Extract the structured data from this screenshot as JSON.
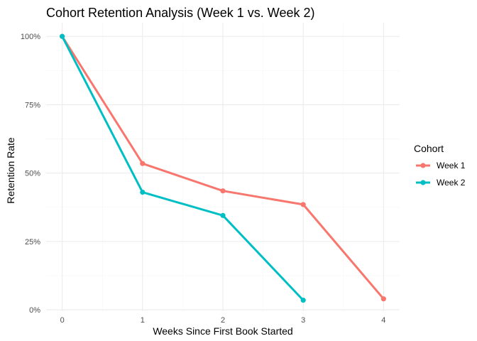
{
  "chart_data": {
    "type": "line",
    "title": "Cohort Retention Analysis (Week 1 vs. Week 2)",
    "xlabel": "Weeks Since First Book Started",
    "ylabel": "Retention Rate",
    "xlim": [
      -0.2,
      4.2
    ],
    "ylim": [
      -0.005,
      1.05
    ],
    "x_ticks": [
      0,
      1,
      2,
      3,
      4
    ],
    "x_tick_labels": [
      "0",
      "1",
      "2",
      "3",
      "4"
    ],
    "y_ticks": [
      0,
      0.25,
      0.5,
      0.75,
      1.0
    ],
    "y_tick_labels": [
      "0%",
      "25%",
      "50%",
      "75%",
      "100%"
    ],
    "grid": true,
    "legend": {
      "title": "Cohort",
      "position": "right"
    },
    "series": [
      {
        "name": "Week 1",
        "color": "#F8766D",
        "x": [
          0,
          1,
          2,
          3,
          4
        ],
        "values": [
          1.0,
          0.535,
          0.435,
          0.385,
          0.04
        ]
      },
      {
        "name": "Week 2",
        "color": "#00BFC4",
        "x": [
          0,
          1,
          2,
          3
        ],
        "values": [
          1.0,
          0.43,
          0.345,
          0.035
        ]
      }
    ]
  }
}
